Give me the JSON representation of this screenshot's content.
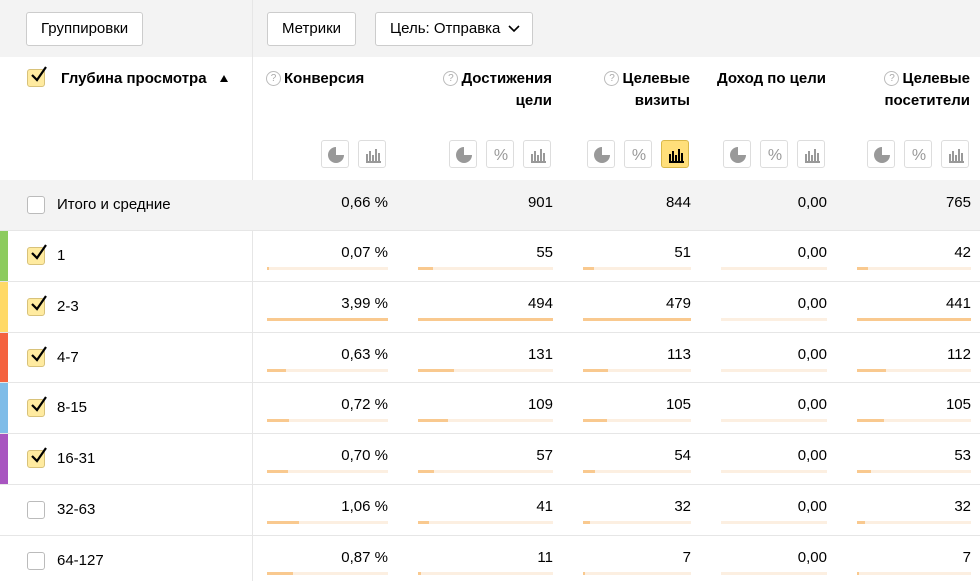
{
  "toolbar": {
    "groupings": "Группировки",
    "metrics": "Метрики",
    "goal": "Цель: Отправка"
  },
  "table": {
    "dimension": "Глубина просмотра",
    "columns": [
      "Конверсия",
      "Достижения цели",
      "Целевые визиты",
      "Доход по цели",
      "Целевые посетители"
    ],
    "totals": {
      "label": "Итого и средние",
      "cells": [
        "0,66 %",
        "901",
        "844",
        "0,00",
        "765"
      ]
    },
    "rows": [
      {
        "label": "1",
        "checked": true,
        "color": "#8ccb5e",
        "cells": [
          "0,07 %",
          "55",
          "51",
          "0,00",
          "42"
        ]
      },
      {
        "label": "2-3",
        "checked": true,
        "color": "#ffd966",
        "cells": [
          "3,99 %",
          "494",
          "479",
          "0,00",
          "441"
        ]
      },
      {
        "label": "4-7",
        "checked": true,
        "color": "#f4623f",
        "cells": [
          "0,63 %",
          "131",
          "113",
          "0,00",
          "112"
        ]
      },
      {
        "label": "8-15",
        "checked": true,
        "color": "#7fbce8",
        "cells": [
          "0,72 %",
          "109",
          "105",
          "0,00",
          "105"
        ]
      },
      {
        "label": "16-31",
        "checked": true,
        "color": "#a855c0",
        "cells": [
          "0,70 %",
          "57",
          "54",
          "0,00",
          "53"
        ]
      },
      {
        "label": "32-63",
        "checked": false,
        "cells": [
          "1,06 %",
          "41",
          "32",
          "0,00",
          "32"
        ]
      },
      {
        "label": "64-127",
        "checked": false,
        "cells": [
          "0,87 %",
          "11",
          "7",
          "0,00",
          "7"
        ]
      }
    ]
  }
}
